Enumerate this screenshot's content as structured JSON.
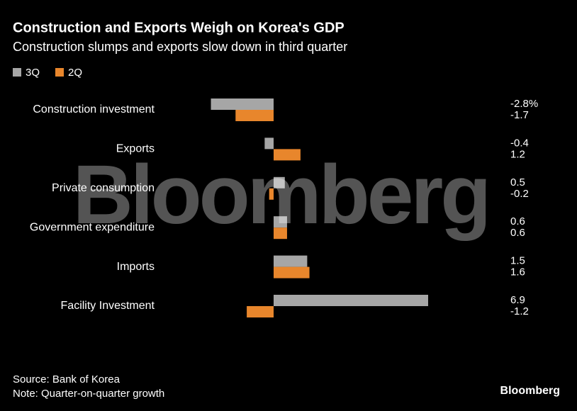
{
  "chart_data": {
    "type": "hbar",
    "title": "Construction and Exports Weigh on Korea's GDP",
    "subtitle": "Construction slumps and exports slow down in third quarter",
    "categories": [
      "Construction investment",
      "Exports",
      "Private consumption",
      "Government expenditure",
      "Imports",
      "Facility Investment"
    ],
    "series": [
      {
        "name": "3Q",
        "color": "#a6a6a6",
        "values": [
          -2.8,
          -0.4,
          0.5,
          0.6,
          1.5,
          6.9
        ],
        "value_labels": [
          "-2.8%",
          "-0.4",
          "0.5",
          "0.6",
          "1.5",
          "6.9"
        ]
      },
      {
        "name": "2Q",
        "color": "#e8862c",
        "values": [
          -1.7,
          1.2,
          -0.2,
          0.6,
          1.6,
          -1.2
        ]
      }
    ],
    "source": "Source: Bank of Korea",
    "note": "Note: Quarter-on-quarter growth",
    "watermark": "Bloomberg",
    "brand": "Bloomberg"
  }
}
